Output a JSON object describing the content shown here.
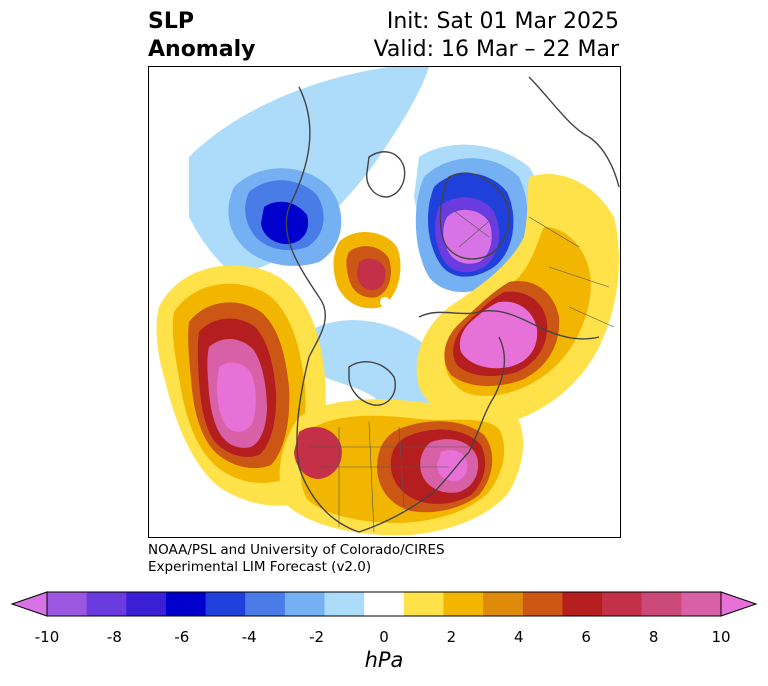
{
  "title": {
    "left_line1": "SLP",
    "left_line2": "Anomaly",
    "right_line1": "Init: Sat 01 Mar 2025",
    "right_line2": "Valid: 16 Mar – 22 Mar"
  },
  "credit": {
    "line1": "NOAA/PSL and University of Colorado/CIRES",
    "line2": "Experimental LIM Forecast (v2.0)"
  },
  "colorbar": {
    "units": "hPa",
    "tick_labels": [
      "-10",
      "-8",
      "-6",
      "-4",
      "-2",
      "0",
      "2",
      "4",
      "6",
      "8",
      "10"
    ],
    "colors": [
      "#d873e6",
      "#9b57e0",
      "#6a3ce0",
      "#3a1fd4",
      "#0000cc",
      "#2040dc",
      "#4a7ce8",
      "#74b0f2",
      "#acdcfa",
      "#ffffff",
      "#ffe14a",
      "#f2b600",
      "#e08a0c",
      "#cc5614",
      "#b41e1e",
      "#c43048",
      "#cc4a7a",
      "#d860a6",
      "#e871d8"
    ]
  },
  "map": {
    "projection": "north-polar-stereographic",
    "variable": "sea-level-pressure-anomaly"
  }
}
